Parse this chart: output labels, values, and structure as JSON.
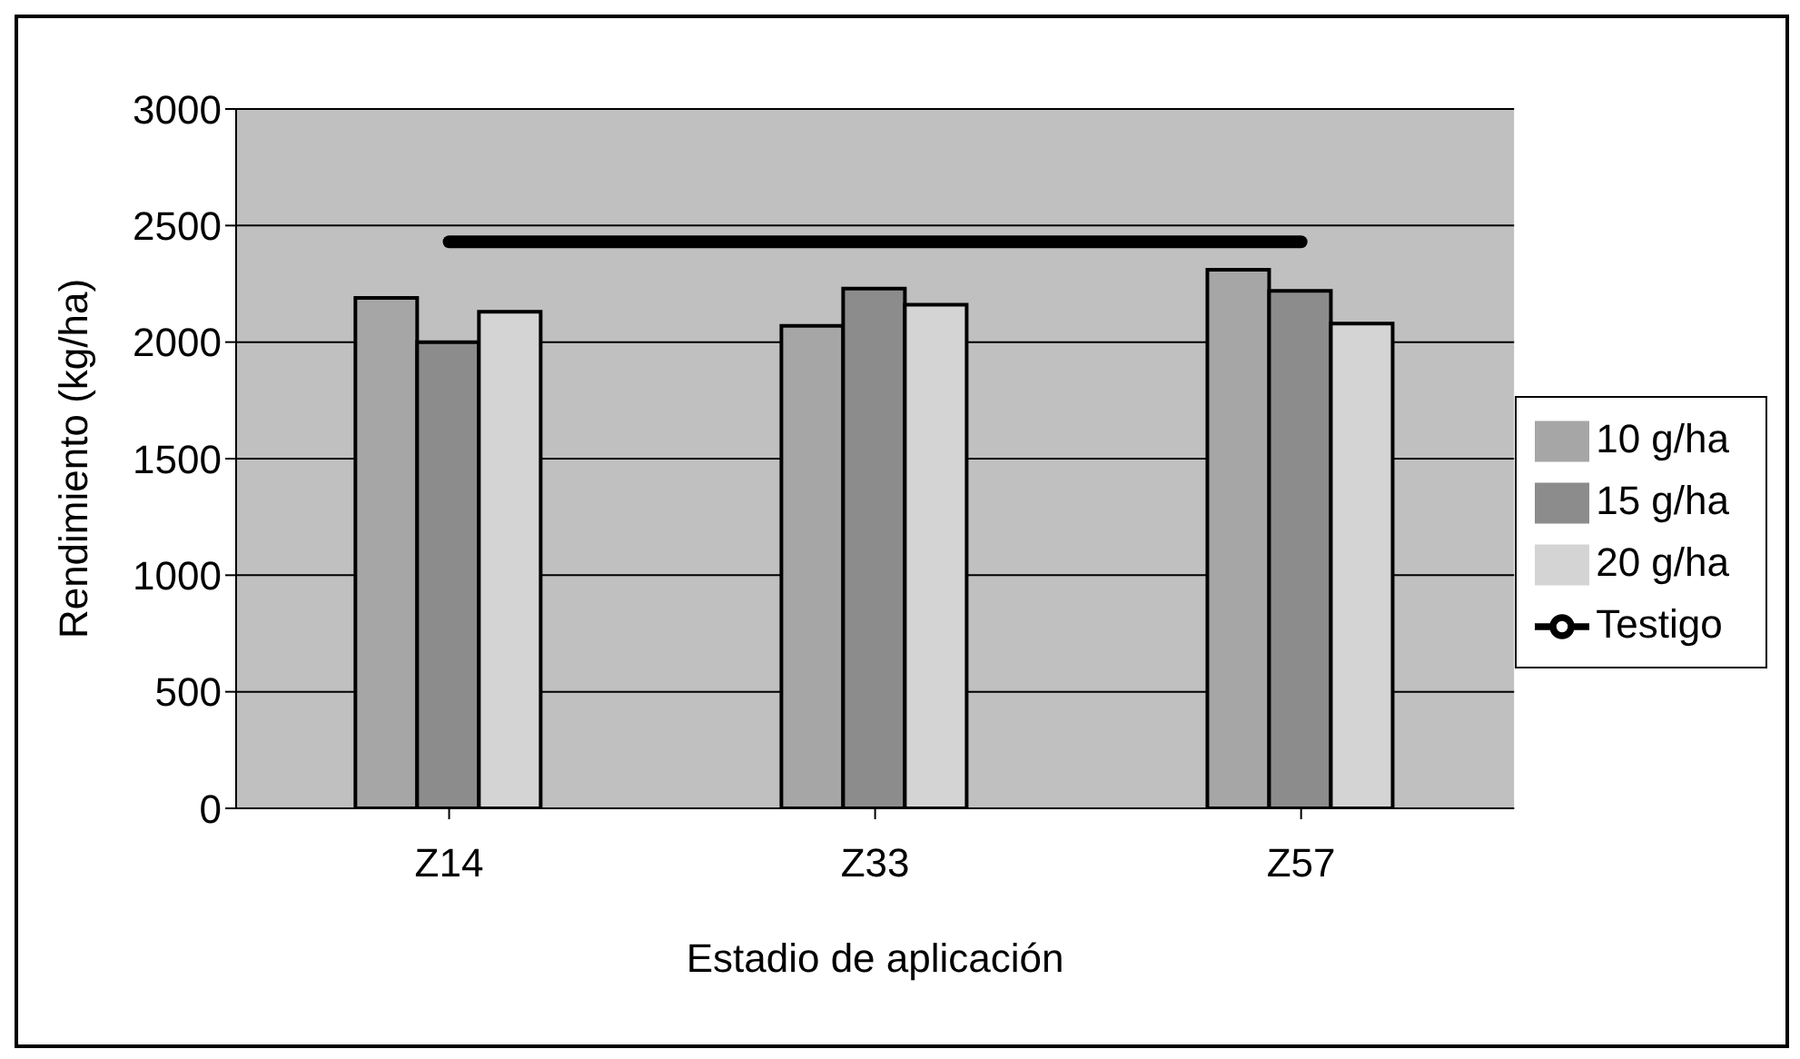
{
  "chart_data": {
    "type": "bar",
    "xlabel": "Estadio de aplicación",
    "ylabel": "Rendimiento (kg/ha)",
    "categories": [
      "Z14",
      "Z33",
      "Z57"
    ],
    "series": [
      {
        "name": "10 g/ha",
        "color": "#a6a6a6",
        "values": [
          2190,
          2070,
          2310
        ]
      },
      {
        "name": "15 g/ha",
        "color": "#8c8c8c",
        "values": [
          2000,
          2230,
          2220
        ]
      },
      {
        "name": "20 g/ha",
        "color": "#d4d4d4",
        "values": [
          2130,
          2160,
          2080
        ]
      },
      {
        "name": "Testigo",
        "type": "line",
        "color": "#000000",
        "values": [
          2430,
          2430,
          2430
        ]
      }
    ],
    "ylim": [
      0,
      3000
    ],
    "yticks": [
      0,
      500,
      1000,
      1500,
      2000,
      2500,
      3000
    ],
    "grid": "y",
    "legend": "right",
    "marker": "none"
  }
}
